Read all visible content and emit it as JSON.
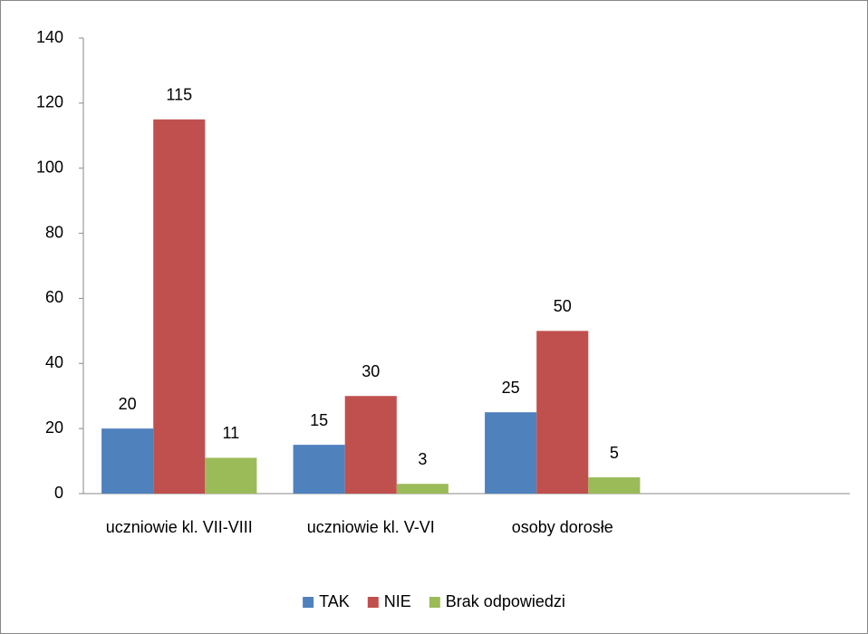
{
  "chart_data": {
    "type": "bar",
    "categories": [
      "uczniowie kl. VII-VIII",
      "uczniowie kl. V-VI",
      "osoby dorosłe",
      null
    ],
    "series": [
      {
        "name": "TAK",
        "color": "#4f81bd",
        "values": [
          20,
          15,
          25,
          null
        ]
      },
      {
        "name": "NIE",
        "color": "#c0504d",
        "values": [
          115,
          30,
          50,
          null
        ]
      },
      {
        "name": "Brak odpowiedzi",
        "color": "#9bbb59",
        "values": [
          11,
          3,
          5,
          null
        ]
      }
    ],
    "ylim": [
      0,
      140
    ],
    "yticks": [
      0,
      20,
      40,
      60,
      80,
      100,
      120,
      140
    ],
    "grid": false,
    "legend": "bottom"
  }
}
